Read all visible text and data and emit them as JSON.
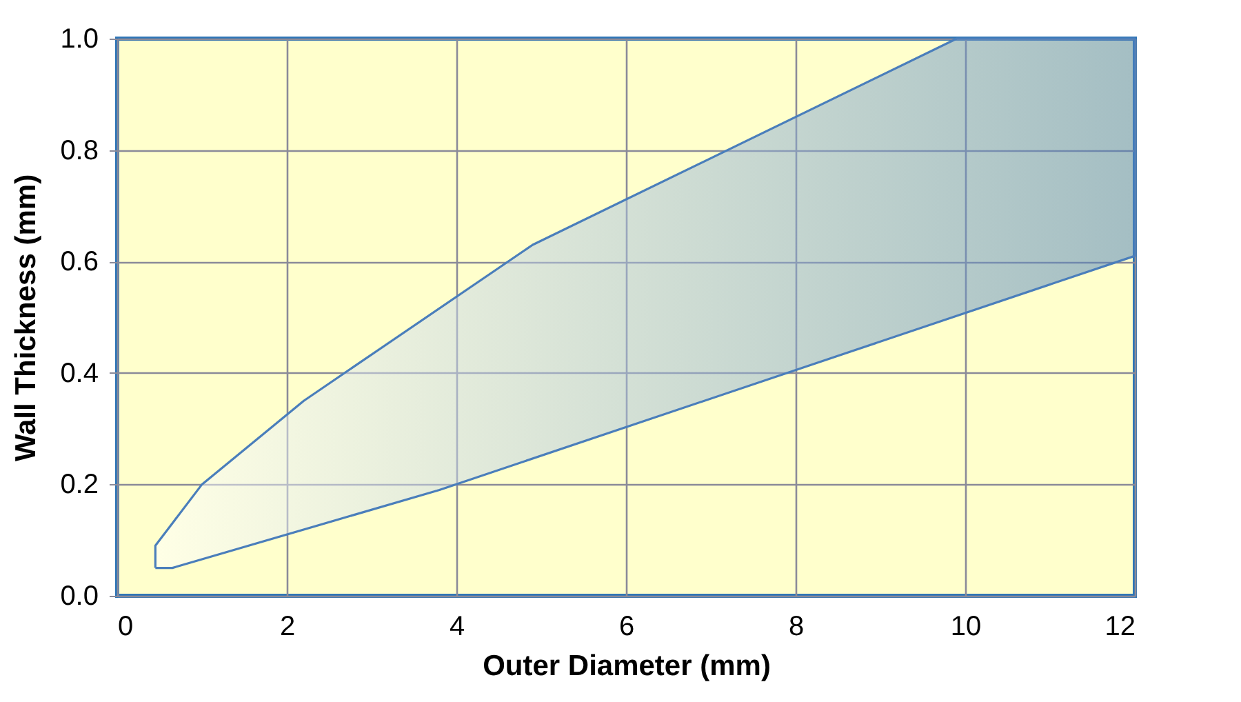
{
  "chart_data": {
    "type": "area",
    "xlabel": "Outer Diameter (mm)",
    "ylabel": "Wall Thickness (mm)",
    "series": [
      {
        "color": "#4a7ebb",
        "x": [
          0.45,
          0.45,
          1.0,
          2.2,
          4.9,
          9.9,
          12,
          12,
          3.8,
          0.65,
          0.45
        ],
        "values": [
          0.05,
          0.09,
          0.2,
          0.35,
          0.63,
          1.0,
          1.0,
          0.61,
          0.19,
          0.05,
          0.05
        ]
      }
    ],
    "xlim": [
      0,
      12
    ],
    "xticks": [
      0,
      2,
      4,
      6,
      8,
      10,
      12
    ],
    "ylim": [
      0,
      1
    ],
    "yticks": [
      {
        "value": 0,
        "label": "0.0"
      },
      {
        "value": 0.2,
        "label": "0.2"
      },
      {
        "value": 0.4,
        "label": "0.4"
      },
      {
        "value": 0.6,
        "label": "0.6"
      },
      {
        "value": 0.8,
        "label": "0.8"
      },
      {
        "value": 1,
        "label": "1.0"
      }
    ],
    "grid": true
  }
}
